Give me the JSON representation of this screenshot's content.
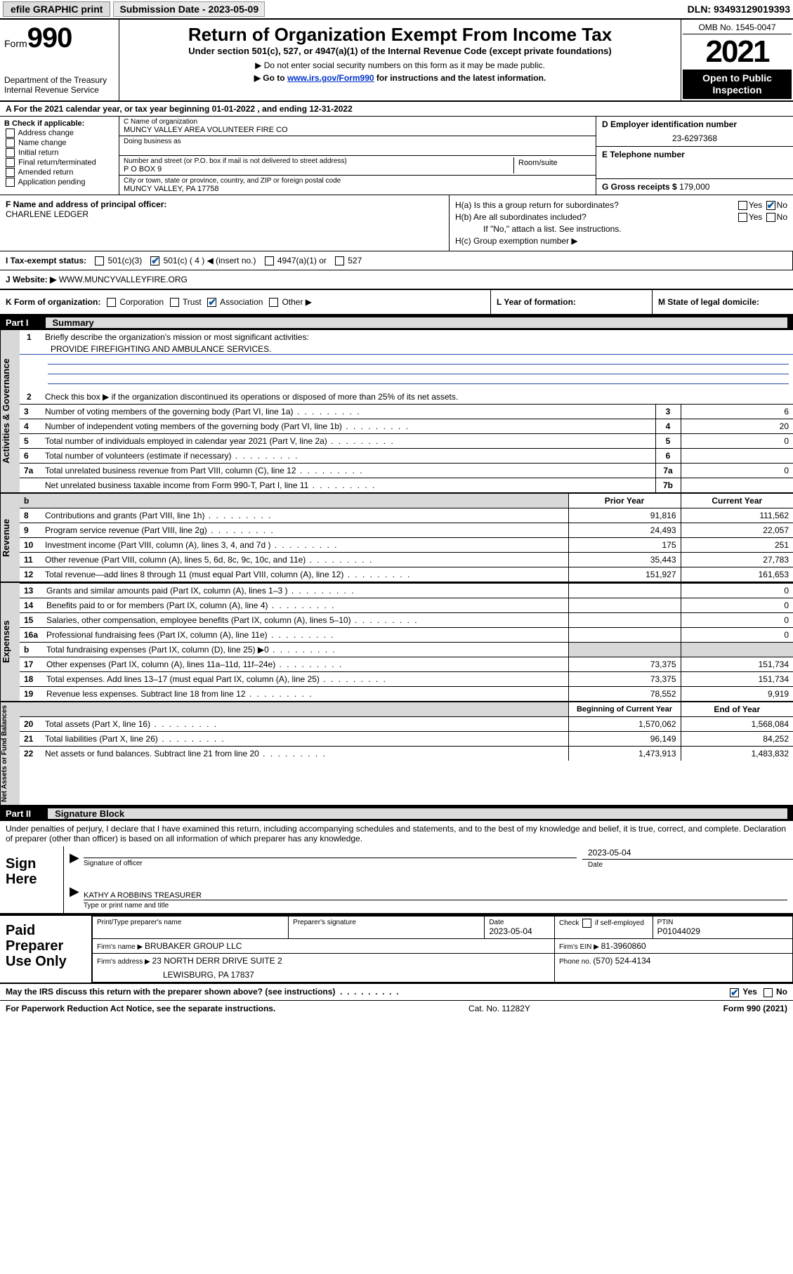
{
  "topbar": {
    "efile": "efile GRAPHIC print",
    "subdate_label": "Submission Date - 2023-05-09",
    "dln": "DLN: 93493129019393"
  },
  "header": {
    "form_prefix": "Form",
    "form_number": "990",
    "dept": "Department of the Treasury",
    "irs": "Internal Revenue Service",
    "title": "Return of Organization Exempt From Income Tax",
    "subtitle": "Under section 501(c), 527, or 4947(a)(1) of the Internal Revenue Code (except private foundations)",
    "line1": "▶ Do not enter social security numbers on this form as it may be made public.",
    "line2_pre": "▶ Go to ",
    "line2_link": "www.irs.gov/Form990",
    "line2_post": " for instructions and the latest information.",
    "omb": "OMB No. 1545-0047",
    "year": "2021",
    "inspection": "Open to Public Inspection"
  },
  "row_a": "A For the 2021 calendar year, or tax year beginning 01-01-2022   , and ending 12-31-2022",
  "col_b": {
    "heading": "B Check if applicable:",
    "items": [
      "Address change",
      "Name change",
      "Initial return",
      "Final return/terminated",
      "Amended return",
      "Application pending"
    ]
  },
  "col_c": {
    "name_label": "C Name of organization",
    "name": "MUNCY VALLEY AREA VOLUNTEER FIRE CO",
    "dba_label": "Doing business as",
    "street_label": "Number and street (or P.O. box if mail is not delivered to street address)",
    "room_label": "Room/suite",
    "street": "P O BOX 9",
    "city_label": "City or town, state or province, country, and ZIP or foreign postal code",
    "city": "MUNCY VALLEY, PA  17758"
  },
  "col_de": {
    "d_label": "D Employer identification number",
    "d_val": "23-6297368",
    "e_label": "E Telephone number",
    "g_label": "G Gross receipts $ ",
    "g_val": "179,000"
  },
  "col_f": {
    "label": "F  Name and address of principal officer:",
    "name": "CHARLENE LEDGER"
  },
  "col_h": {
    "ha": "H(a)  Is this a group return for subordinates?",
    "hb": "H(b)  Are all subordinates included?",
    "hb_note": "If \"No,\" attach a list. See instructions.",
    "hc": "H(c)  Group exemption number ▶"
  },
  "row_i": {
    "label": "I   Tax-exempt status:",
    "c3": "501(c)(3)",
    "c_ins": "501(c) ( 4 ) ◀ (insert no.)",
    "a1": "4947(a)(1) or",
    "s527": "527"
  },
  "row_j": {
    "label": "J   Website: ▶  ",
    "val": "WWW.MUNCYVALLEYFIRE.ORG"
  },
  "row_k": {
    "k": "K Form of organization:",
    "l": "L Year of formation:",
    "m": "M State of legal domicile:"
  },
  "part1": {
    "header_part": "Part I",
    "header_title": "Summary",
    "q1": "Briefly describe the organization's mission or most significant activities:",
    "q1_val": "PROVIDE FIREFIGHTING AND AMBULANCE SERVICES.",
    "q2": "Check this box ▶        if the organization discontinued its operations or disposed of more than 25% of its net assets.",
    "rows_gov": [
      {
        "n": "3",
        "d": "Number of voting members of the governing body (Part VI, line 1a)",
        "bx": "3",
        "v": "6"
      },
      {
        "n": "4",
        "d": "Number of independent voting members of the governing body (Part VI, line 1b)",
        "bx": "4",
        "v": "20"
      },
      {
        "n": "5",
        "d": "Total number of individuals employed in calendar year 2021 (Part V, line 2a)",
        "bx": "5",
        "v": "0"
      },
      {
        "n": "6",
        "d": "Total number of volunteers (estimate if necessary)",
        "bx": "6",
        "v": ""
      },
      {
        "n": "7a",
        "d": "Total unrelated business revenue from Part VIII, column (C), line 12",
        "bx": "7a",
        "v": "0"
      },
      {
        "n": "",
        "d": "Net unrelated business taxable income from Form 990-T, Part I, line 11",
        "bx": "7b",
        "v": ""
      }
    ],
    "col_prior": "Prior Year",
    "col_curr": "Current Year",
    "rows_rev": [
      {
        "n": "8",
        "d": "Contributions and grants (Part VIII, line 1h)",
        "p": "91,816",
        "c": "111,562"
      },
      {
        "n": "9",
        "d": "Program service revenue (Part VIII, line 2g)",
        "p": "24,493",
        "c": "22,057"
      },
      {
        "n": "10",
        "d": "Investment income (Part VIII, column (A), lines 3, 4, and 7d )",
        "p": "175",
        "c": "251"
      },
      {
        "n": "11",
        "d": "Other revenue (Part VIII, column (A), lines 5, 6d, 8c, 9c, 10c, and 11e)",
        "p": "35,443",
        "c": "27,783"
      },
      {
        "n": "12",
        "d": "Total revenue—add lines 8 through 11 (must equal Part VIII, column (A), line 12)",
        "p": "151,927",
        "c": "161,653"
      }
    ],
    "rows_exp": [
      {
        "n": "13",
        "d": "Grants and similar amounts paid (Part IX, column (A), lines 1–3 )",
        "p": "",
        "c": "0"
      },
      {
        "n": "14",
        "d": "Benefits paid to or for members (Part IX, column (A), line 4)",
        "p": "",
        "c": "0"
      },
      {
        "n": "15",
        "d": "Salaries, other compensation, employee benefits (Part IX, column (A), lines 5–10)",
        "p": "",
        "c": "0"
      },
      {
        "n": "16a",
        "d": "Professional fundraising fees (Part IX, column (A), line 11e)",
        "p": "",
        "c": "0"
      },
      {
        "n": "b",
        "d": "Total fundraising expenses (Part IX, column (D), line 25) ▶0",
        "p": "shade",
        "c": "shade"
      },
      {
        "n": "17",
        "d": "Other expenses (Part IX, column (A), lines 11a–11d, 11f–24e)",
        "p": "73,375",
        "c": "151,734"
      },
      {
        "n": "18",
        "d": "Total expenses. Add lines 13–17 (must equal Part IX, column (A), line 25)",
        "p": "73,375",
        "c": "151,734"
      },
      {
        "n": "19",
        "d": "Revenue less expenses. Subtract line 18 from line 12",
        "p": "78,552",
        "c": "9,919"
      }
    ],
    "col_begin": "Beginning of Current Year",
    "col_end": "End of Year",
    "rows_net": [
      {
        "n": "20",
        "d": "Total assets (Part X, line 16)",
        "p": "1,570,062",
        "c": "1,568,084"
      },
      {
        "n": "21",
        "d": "Total liabilities (Part X, line 26)",
        "p": "96,149",
        "c": "84,252"
      },
      {
        "n": "22",
        "d": "Net assets or fund balances. Subtract line 21 from line 20",
        "p": "1,473,913",
        "c": "1,483,832"
      }
    ]
  },
  "side_labels": {
    "gov": "Activities & Governance",
    "rev": "Revenue",
    "exp": "Expenses",
    "net": "Net Assets or Fund Balances"
  },
  "part2": {
    "header_part": "Part II",
    "header_title": "Signature Block",
    "decl": "Under penalties of perjury, I declare that I have examined this return, including accompanying schedules and statements, and to the best of my knowledge and belief, it is true, correct, and complete. Declaration of preparer (other than officer) is based on all information of which preparer has any knowledge.",
    "sign_here": "Sign Here",
    "sig_officer": "Signature of officer",
    "date": "Date",
    "date_val": "2023-05-04",
    "officer_name": "KATHY A ROBBINS  TREASURER",
    "type_name": "Type or print name and title"
  },
  "paid": {
    "title": "Paid Preparer Use Only",
    "h1": "Print/Type preparer's name",
    "h2": "Preparer's signature",
    "h3": "Date",
    "h3v": "2023-05-04",
    "h4": "Check        if self-employed",
    "h5": "PTIN",
    "h5v": "P01044029",
    "firm_label": "Firm's name     ▶ ",
    "firm": "BRUBAKER GROUP LLC",
    "ein_label": "Firm's EIN ▶ ",
    "ein": "81-3960860",
    "addr_label": "Firm's address ▶ ",
    "addr1": "23 NORTH DERR DRIVE SUITE 2",
    "addr2": "LEWISBURG, PA  17837",
    "phone_label": "Phone no. ",
    "phone": "(570) 524-4134"
  },
  "footer": {
    "q": "May the IRS discuss this return with the preparer shown above? (see instructions)",
    "paperwork": "For Paperwork Reduction Act Notice, see the separate instructions.",
    "cat": "Cat. No. 11282Y",
    "form": "Form 990 (2021)"
  },
  "colors": {
    "accent": "#0033cc",
    "shade": "#d8d8d8",
    "black": "#000000"
  }
}
